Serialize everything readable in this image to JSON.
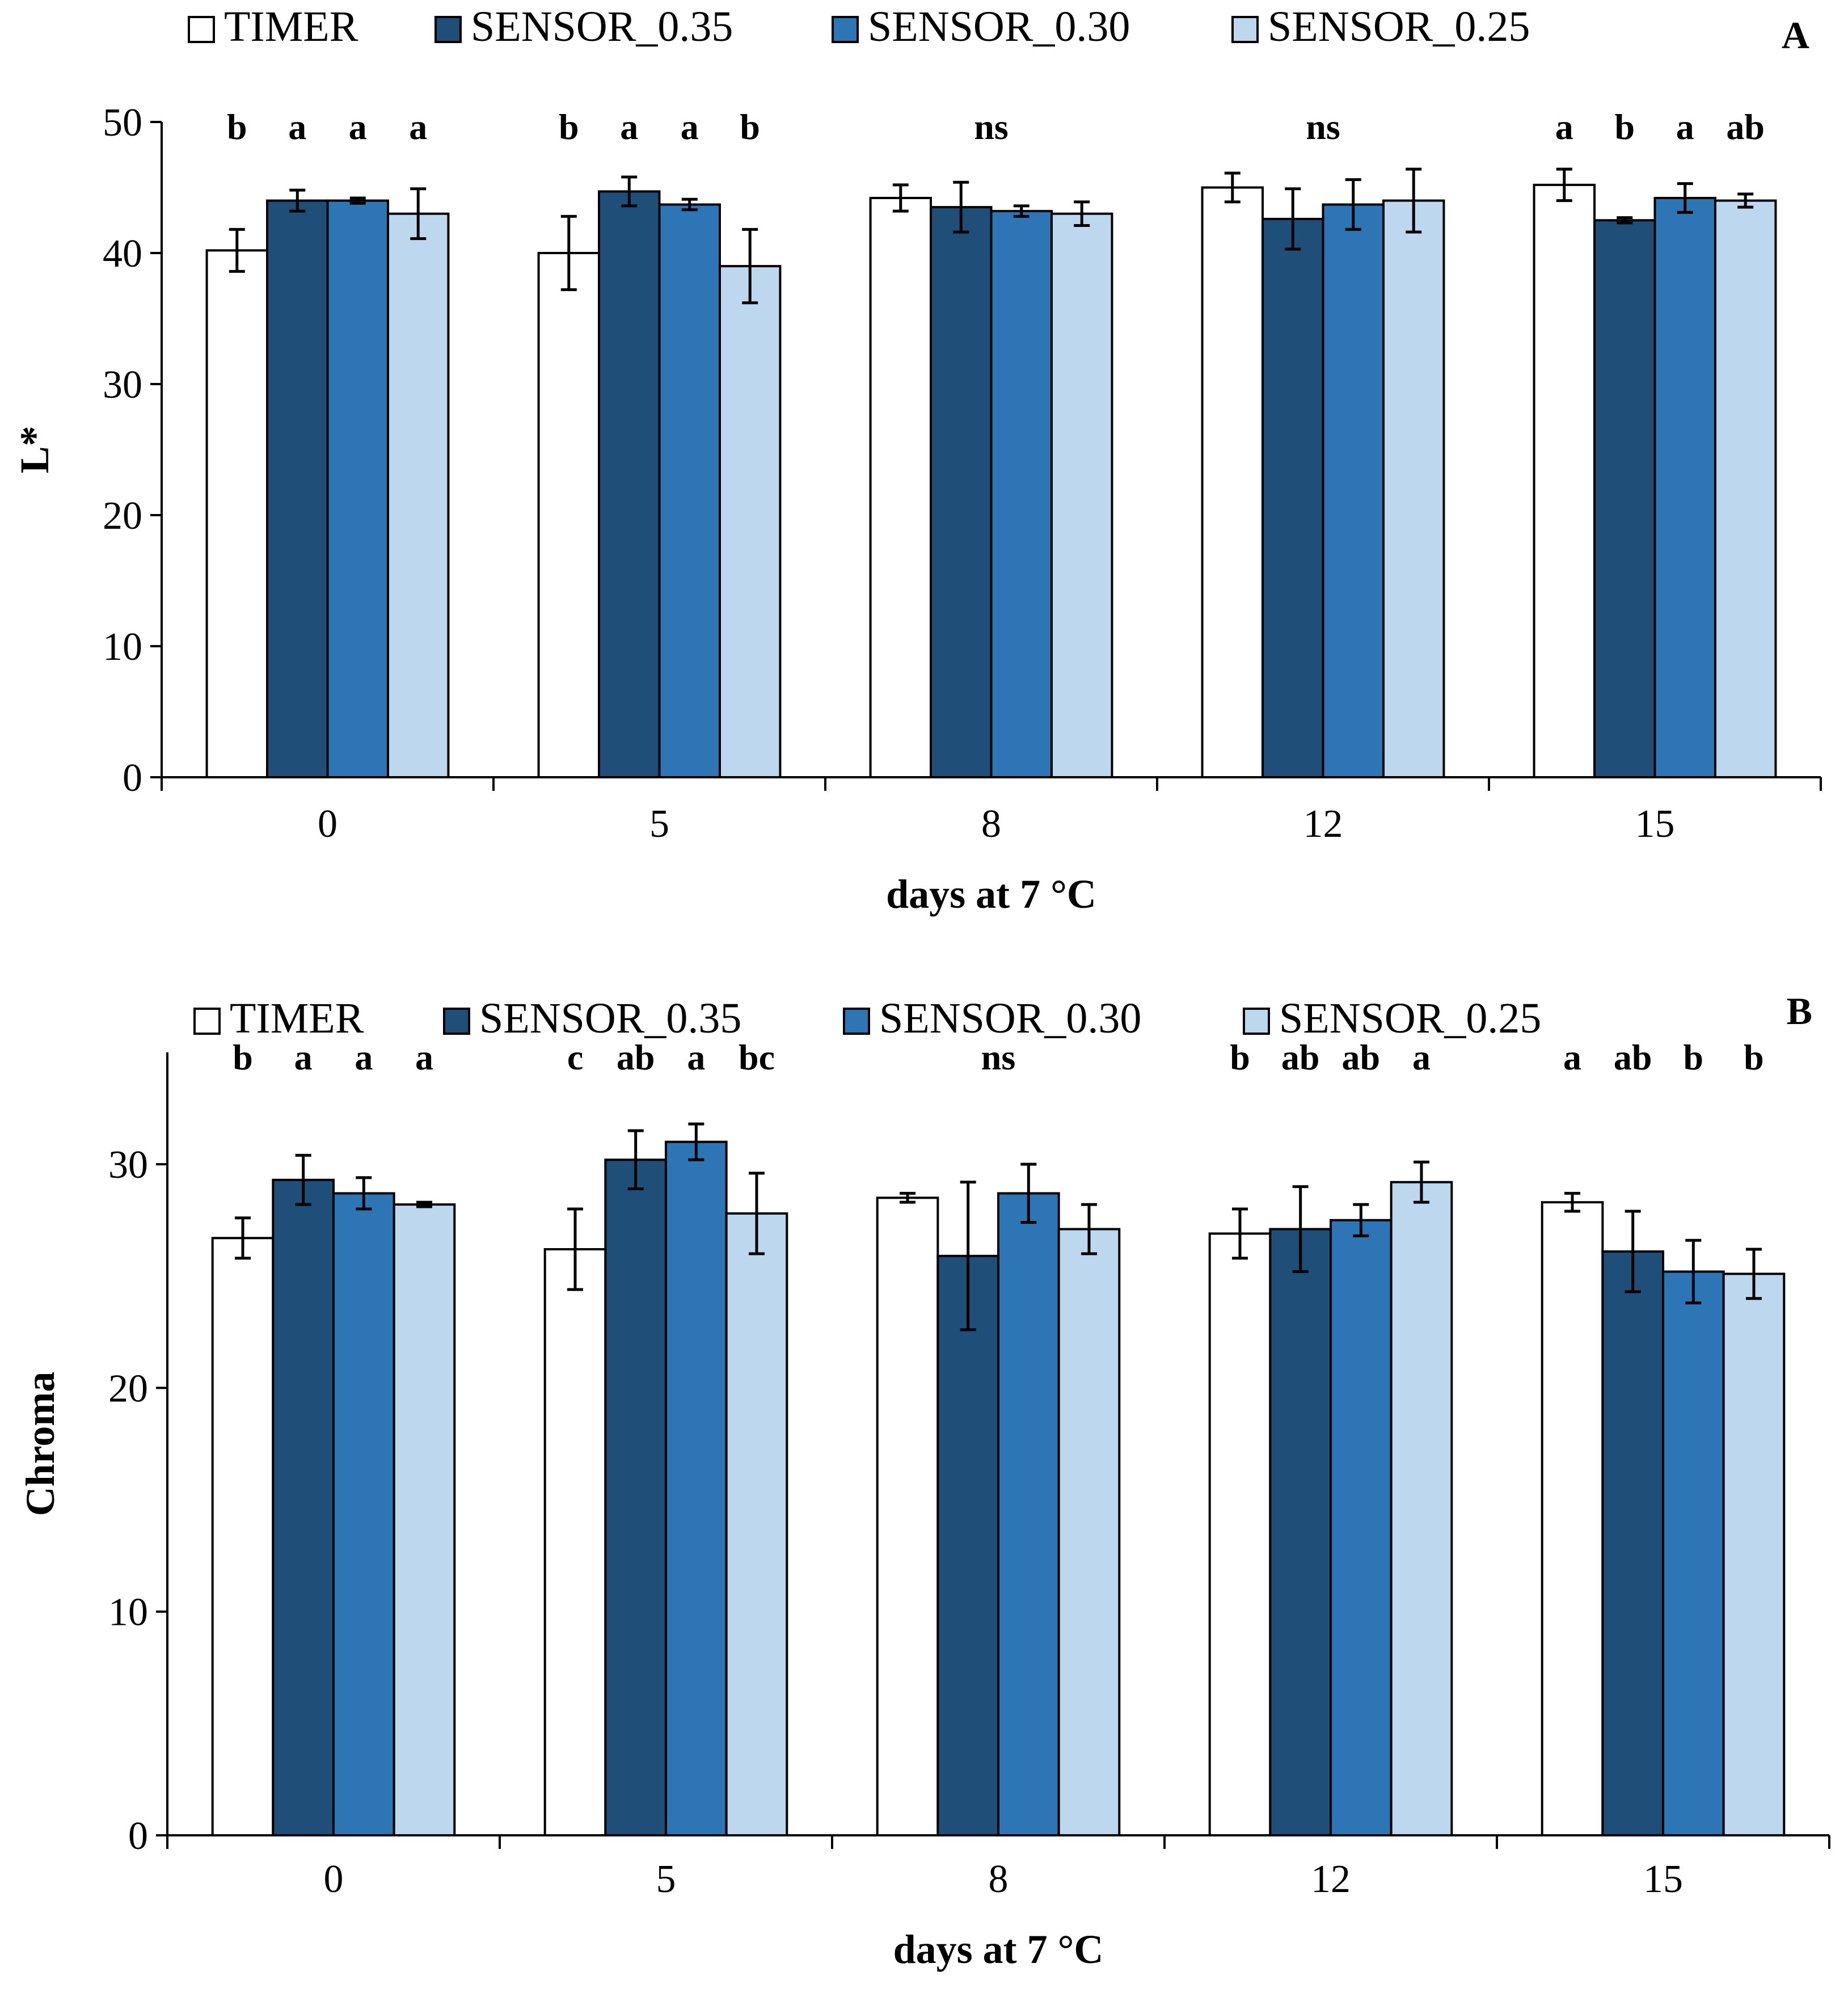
{
  "colors": {
    "TIMER": "#ffffff",
    "SENSOR_0.35": "#1f4e79",
    "SENSOR_0.30": "#2e75b6",
    "SENSOR_0.25": "#bdd7ee"
  },
  "chart_data": [
    {
      "type": "bar",
      "panel_label": "A",
      "categories": [
        "0",
        "5",
        "8",
        "12",
        "15"
      ],
      "xlabel": "days at 7 °C",
      "ylabel": "L*",
      "ylim": [
        0,
        50
      ],
      "yticks": [
        0,
        10,
        20,
        30,
        40,
        50
      ],
      "legend": [
        "TIMER",
        "SENSOR_0.35",
        "SENSOR_0.30",
        "SENSOR_0.25"
      ],
      "series": [
        {
          "name": "TIMER",
          "values": [
            40.2,
            40.0,
            44.2,
            45.0,
            45.2
          ],
          "errors": [
            1.6,
            2.8,
            1.0,
            1.1,
            1.2
          ]
        },
        {
          "name": "SENSOR_0.35",
          "values": [
            44.0,
            44.7,
            43.5,
            42.6,
            42.5
          ],
          "errors": [
            0.8,
            1.1,
            1.9,
            2.3,
            0.2
          ]
        },
        {
          "name": "SENSOR_0.30",
          "values": [
            44.0,
            43.7,
            43.2,
            43.7,
            44.2
          ],
          "errors": [
            0.2,
            0.4,
            0.4,
            1.9,
            1.1
          ]
        },
        {
          "name": "SENSOR_0.25",
          "values": [
            43.0,
            39.0,
            43.0,
            44.0,
            44.0
          ],
          "errors": [
            1.9,
            2.8,
            0.9,
            2.4,
            0.5
          ]
        }
      ],
      "significance": [
        [
          "b",
          "a",
          "a",
          "a"
        ],
        [
          "b",
          "a",
          "a",
          "b"
        ],
        [
          "ns"
        ],
        [
          "ns"
        ],
        [
          "a",
          "b",
          "a",
          "ab"
        ]
      ]
    },
    {
      "type": "bar",
      "panel_label": "B",
      "categories": [
        "0",
        "5",
        "8",
        "12",
        "15"
      ],
      "xlabel": "days at 7 °C",
      "ylabel": "Chroma",
      "ylim": [
        0,
        35
      ],
      "yticks": [
        0,
        10,
        20,
        30
      ],
      "legend": [
        "TIMER",
        "SENSOR_0.35",
        "SENSOR_0.30",
        "SENSOR_0.25"
      ],
      "series": [
        {
          "name": "TIMER",
          "values": [
            26.7,
            26.2,
            28.5,
            26.9,
            28.3
          ],
          "errors": [
            0.9,
            1.8,
            0.2,
            1.1,
            0.4
          ]
        },
        {
          "name": "SENSOR_0.35",
          "values": [
            29.3,
            30.2,
            25.9,
            27.1,
            26.1
          ],
          "errors": [
            1.1,
            1.3,
            3.3,
            1.9,
            1.8
          ]
        },
        {
          "name": "SENSOR_0.30",
          "values": [
            28.7,
            31.0,
            28.7,
            27.5,
            25.2
          ],
          "errors": [
            0.7,
            0.8,
            1.3,
            0.7,
            1.4
          ]
        },
        {
          "name": "SENSOR_0.25",
          "values": [
            28.2,
            27.8,
            27.1,
            29.2,
            25.1
          ],
          "errors": [
            0.1,
            1.8,
            1.1,
            0.9,
            1.1
          ]
        }
      ],
      "significance": [
        [
          "b",
          "a",
          "a",
          "a"
        ],
        [
          "c",
          "ab",
          "a",
          "bc"
        ],
        [
          "ns"
        ],
        [
          "b",
          "ab",
          "ab",
          "a"
        ],
        [
          "a",
          "ab",
          "b",
          "b"
        ]
      ]
    }
  ]
}
